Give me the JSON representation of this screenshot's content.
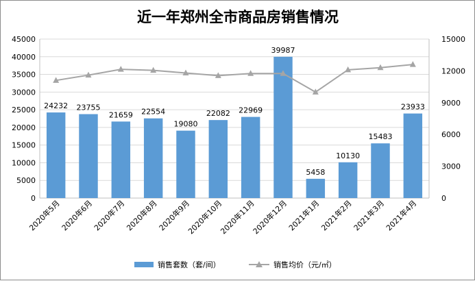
{
  "chart_data": {
    "type": "bar",
    "title": "近一年郑州全市商品房销售情况",
    "categories": [
      "2020年5月",
      "2020年6月",
      "2020年7月",
      "2020年8月",
      "2020年9月",
      "2020年10月",
      "2020年11月",
      "2020年12月",
      "2021年1月",
      "2021年2月",
      "2021年3月",
      "2021年4月"
    ],
    "series": [
      {
        "name": "销售套数（套/间）",
        "type": "bar",
        "axis": "left",
        "color": "#5b9bd5",
        "values": [
          24232,
          23755,
          21659,
          22554,
          19080,
          22082,
          22969,
          39987,
          5458,
          10130,
          15483,
          23933
        ],
        "labels": [
          "24232",
          "23755",
          "21659",
          "22554",
          "19080",
          "22082",
          "22969",
          "39987",
          "5458",
          "10130",
          "15483",
          "23933"
        ]
      },
      {
        "name": "销售均价（元/㎡）",
        "type": "line",
        "axis": "right",
        "color": "#a5a5a5",
        "marker": "triangle",
        "values": [
          11100,
          11600,
          12150,
          12050,
          11800,
          11550,
          11750,
          11750,
          10000,
          12100,
          12300,
          12600
        ]
      }
    ],
    "y_left": {
      "min": 0,
      "max": 45000,
      "ticks": [
        "0",
        "5000",
        "10000",
        "15000",
        "20000",
        "25000",
        "30000",
        "35000",
        "40000",
        "45000"
      ]
    },
    "y_right": {
      "min": 0,
      "max": 15000,
      "ticks": [
        "0",
        "3000",
        "6000",
        "9000",
        "12000",
        "15000"
      ]
    },
    "grid": true,
    "legend_position": "bottom"
  }
}
